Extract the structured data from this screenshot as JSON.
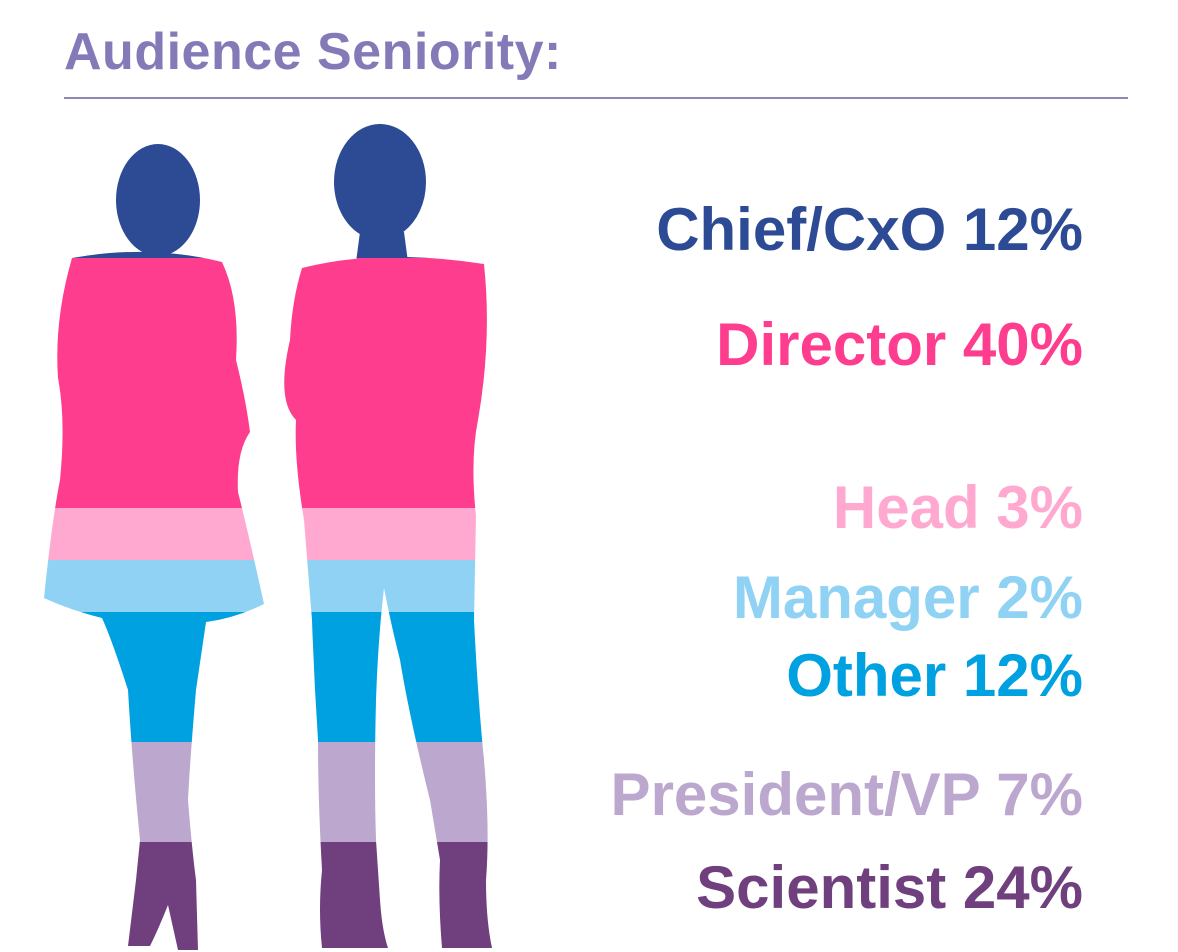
{
  "title": "Audience Seniority:",
  "chart_data": {
    "type": "stacked-bar",
    "title": "Audience Seniority:",
    "unit": "%",
    "categories": [
      {
        "name": "Chief/CxO",
        "value": 12,
        "color": "#2d4a94"
      },
      {
        "name": "Director",
        "value": 40,
        "color": "#ff3d8f"
      },
      {
        "name": "Head",
        "value": 3,
        "color": "#ffa9d1"
      },
      {
        "name": "Manager",
        "value": 2,
        "color": "#8fd2f4"
      },
      {
        "name": "Other",
        "value": 12,
        "color": "#00a1e0"
      },
      {
        "name": "President/VP",
        "value": 7,
        "color": "#bca7ce"
      },
      {
        "name": "Scientist",
        "value": 24,
        "color": "#70407e"
      }
    ]
  }
}
